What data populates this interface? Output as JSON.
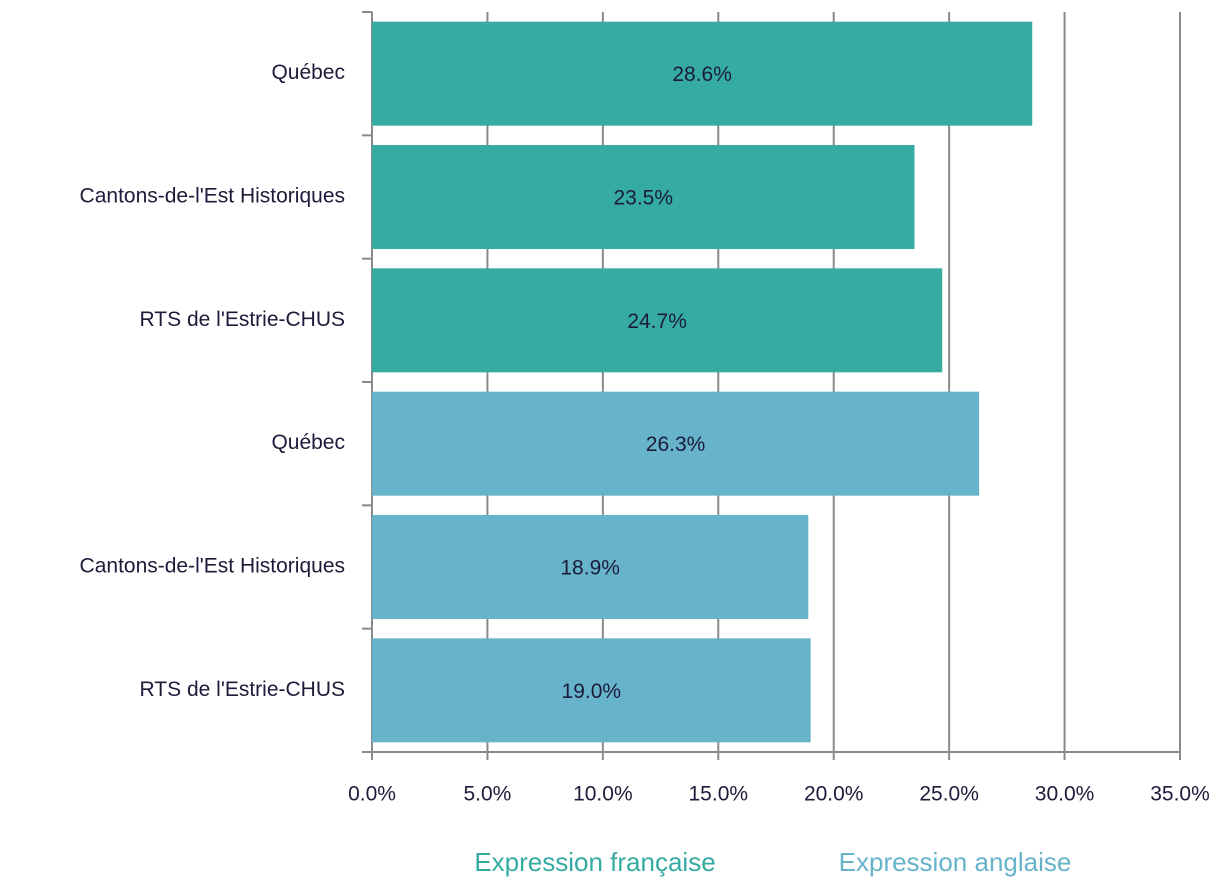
{
  "chart_data": {
    "type": "bar",
    "orientation": "horizontal",
    "categories": [
      "Québec",
      "Cantons-de-l'Est Historiques",
      "RTS de l'Estrie-CHUS",
      "Québec",
      "Cantons-de-l'Est Historiques",
      "RTS de l'Estrie-CHUS"
    ],
    "series": [
      {
        "name": "Expression française",
        "color": "#35aba2",
        "values": [
          28.6,
          23.5,
          24.7,
          null,
          null,
          null
        ],
        "value_labels": [
          "28.6%",
          "23.5%",
          "24.7%",
          null,
          null,
          null
        ]
      },
      {
        "name": "Expression anglaise",
        "color": "#67b3ca",
        "values": [
          null,
          null,
          null,
          26.3,
          18.9,
          19.0
        ],
        "value_labels": [
          null,
          null,
          null,
          "26.3%",
          "18.9%",
          "19.0%"
        ]
      }
    ],
    "xlim": [
      0,
      35
    ],
    "xticks": [
      {
        "value": 0,
        "label": "0.0%"
      },
      {
        "value": 5,
        "label": "5.0%"
      },
      {
        "value": 10,
        "label": "10.0%"
      },
      {
        "value": 15,
        "label": "15.0%"
      },
      {
        "value": 20,
        "label": "20.0%"
      },
      {
        "value": 25,
        "label": "25.0%"
      },
      {
        "value": 30,
        "label": "30.0%"
      },
      {
        "value": 35,
        "label": "35.0%"
      }
    ],
    "grid": true,
    "legend": "bottom"
  }
}
